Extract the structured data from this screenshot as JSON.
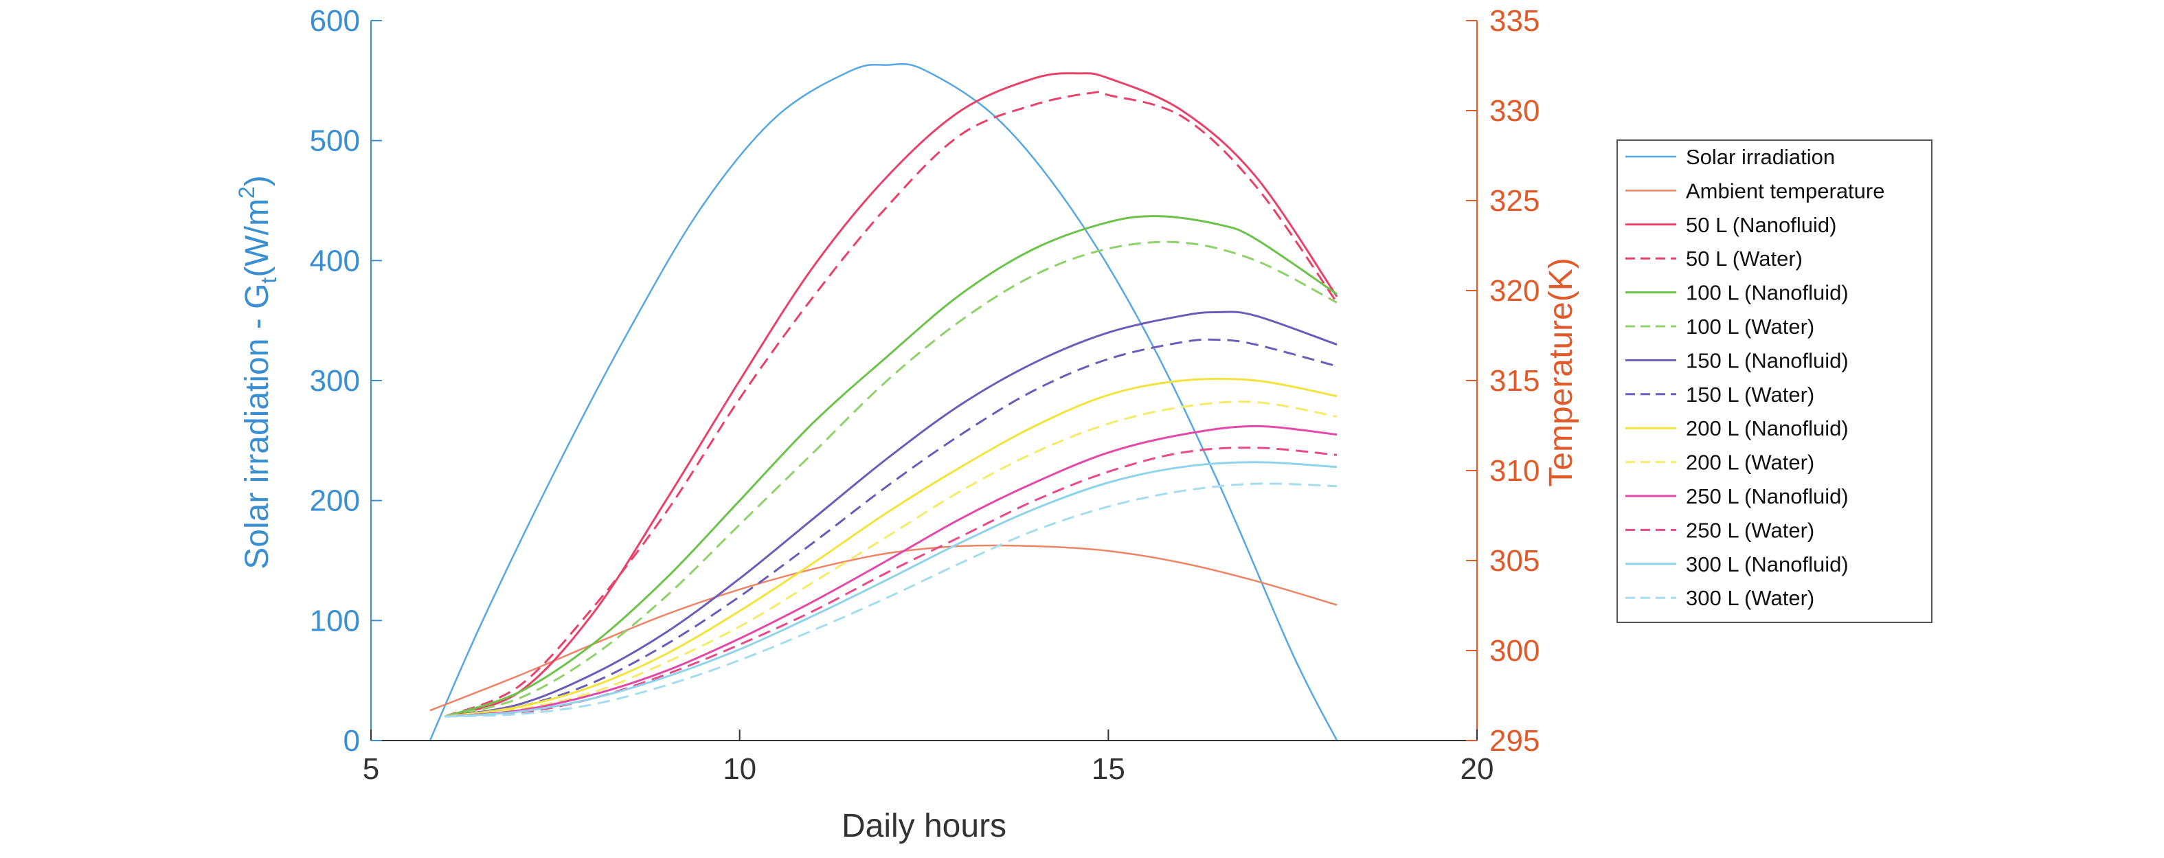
{
  "colors": {
    "left_axis": "#3a8fd0",
    "right_axis": "#e05a2a",
    "axis_black": "#333333"
  },
  "chart_data": {
    "type": "line",
    "xlabel": "Daily hours",
    "ylabel_left": "Solar irradiation - G",
    "ylabel_left_sub": "t",
    "ylabel_left_unit_open": "(W/m",
    "ylabel_left_unit_sup": "2",
    "ylabel_left_unit_close": ")",
    "ylabel_right": "Temperature(K)",
    "xlim": [
      5,
      20
    ],
    "ylim_left": [
      0,
      600
    ],
    "ylim_right": [
      295,
      335
    ],
    "xticks": [
      5,
      10,
      15,
      20
    ],
    "yticks_left": [
      0,
      100,
      200,
      300,
      400,
      500,
      600
    ],
    "yticks_right": [
      295,
      300,
      305,
      310,
      315,
      320,
      325,
      330,
      335
    ],
    "grid": false,
    "legend_position": "right-outside",
    "series": [
      {
        "name": "Solar irradiation",
        "axis": "left",
        "color": "#56a7e3",
        "dash": false,
        "width": 2.5,
        "x": [
          5.8,
          6.5,
          7.5,
          8.5,
          9.5,
          10.5,
          11.5,
          12.0,
          12.5,
          13.5,
          14.5,
          15.5,
          16.5,
          17.5,
          18.1
        ],
        "y": [
          0,
          98,
          225,
          342,
          446,
          520,
          558,
          563,
          559,
          518,
          443,
          341,
          214,
          72,
          0
        ]
      },
      {
        "name": "Ambient temperature",
        "axis": "left",
        "color": "#ee8466",
        "dash": false,
        "width": 2.5,
        "x": [
          5.8,
          7,
          8,
          9,
          10,
          11,
          12,
          13,
          14,
          15,
          16,
          17,
          18.1
        ],
        "y": [
          25,
          54,
          80,
          105,
          126,
          143,
          156,
          162,
          162,
          158,
          148,
          133,
          113
        ]
      },
      {
        "name": "50 L (Nanofluid)",
        "axis": "left",
        "color": "#e8426a",
        "dash": false,
        "width": 3,
        "x": [
          6,
          7,
          8,
          9,
          10,
          11,
          12,
          13,
          14,
          14.6,
          15,
          16,
          17,
          18.1
        ],
        "y": [
          20,
          40,
          105,
          200,
          300,
          395,
          470,
          525,
          552,
          556,
          552,
          525,
          470,
          370
        ]
      },
      {
        "name": "50 L (Water)",
        "axis": "left",
        "color": "#e8426a",
        "dash": true,
        "width": 3,
        "x": [
          6,
          7,
          8,
          9,
          10,
          11,
          12,
          13,
          14,
          14.8,
          15,
          16,
          17,
          18.1
        ],
        "y": [
          20,
          45,
          110,
          190,
          285,
          370,
          445,
          505,
          530,
          540,
          538,
          520,
          462,
          365
        ]
      },
      {
        "name": "100 L (Nanofluid)",
        "axis": "left",
        "color": "#6cc24a",
        "dash": false,
        "width": 3,
        "x": [
          6,
          7,
          8,
          9,
          10,
          11,
          12,
          13,
          14,
          15,
          15.7,
          16.5,
          17,
          18.1
        ],
        "y": [
          20,
          40,
          80,
          135,
          200,
          265,
          320,
          372,
          410,
          432,
          437,
          430,
          418,
          372
        ]
      },
      {
        "name": "100 L (Water)",
        "axis": "left",
        "color": "#8fd16a",
        "dash": true,
        "width": 3,
        "x": [
          6,
          7,
          8,
          9,
          10,
          11,
          12,
          13,
          14,
          15,
          16,
          17,
          18.1
        ],
        "y": [
          20,
          35,
          70,
          120,
          180,
          240,
          300,
          350,
          388,
          410,
          415,
          400,
          365
        ]
      },
      {
        "name": "150 L (Nanofluid)",
        "axis": "left",
        "color": "#6d5bb8",
        "dash": false,
        "width": 3,
        "x": [
          6,
          7,
          8,
          9,
          10,
          11,
          12,
          13,
          14,
          15,
          16,
          16.5,
          17,
          18.1
        ],
        "y": [
          20,
          30,
          55,
          90,
          135,
          185,
          235,
          280,
          315,
          340,
          354,
          357,
          354,
          330
        ]
      },
      {
        "name": "150 L (Water)",
        "axis": "left",
        "color": "#6d5bb8",
        "dash": true,
        "width": 3,
        "x": [
          6,
          7,
          8,
          9,
          10,
          11,
          12,
          13,
          14,
          15,
          16,
          16.5,
          17,
          18.1
        ],
        "y": [
          20,
          28,
          48,
          80,
          120,
          165,
          212,
          255,
          292,
          318,
          332,
          334,
          330,
          312
        ]
      },
      {
        "name": "200 L (Nanofluid)",
        "axis": "left",
        "color": "#f2e33d",
        "dash": false,
        "width": 3,
        "x": [
          6,
          7,
          8,
          9,
          10,
          11,
          12,
          13,
          14,
          15,
          16,
          17,
          18.1
        ],
        "y": [
          20,
          28,
          45,
          72,
          108,
          148,
          190,
          228,
          262,
          288,
          300,
          300,
          287
        ]
      },
      {
        "name": "200 L (Water)",
        "axis": "left",
        "color": "#f6ea6a",
        "dash": true,
        "width": 3,
        "x": [
          6,
          7,
          8,
          9,
          10,
          11,
          12,
          13,
          14,
          15,
          16,
          17,
          18.1
        ],
        "y": [
          20,
          26,
          40,
          65,
          95,
          132,
          170,
          208,
          240,
          264,
          278,
          282,
          270
        ]
      },
      {
        "name": "250 L (Nanofluid)",
        "axis": "left",
        "color": "#e349a8",
        "dash": false,
        "width": 3,
        "x": [
          6,
          7,
          8,
          9,
          10,
          11,
          12,
          13,
          14,
          15,
          16,
          17,
          18.1
        ],
        "y": [
          20,
          25,
          38,
          58,
          85,
          116,
          150,
          185,
          215,
          240,
          255,
          262,
          255
        ]
      },
      {
        "name": "250 L (Water)",
        "axis": "left",
        "color": "#e84a8a",
        "dash": true,
        "width": 3,
        "x": [
          6,
          7,
          8,
          9,
          10,
          11,
          12,
          13,
          14,
          15,
          16,
          17,
          18.1
        ],
        "y": [
          20,
          23,
          35,
          55,
          80,
          108,
          140,
          170,
          200,
          224,
          240,
          244,
          238
        ]
      },
      {
        "name": "300 L (Nanofluid)",
        "axis": "left",
        "color": "#8fd3ea",
        "dash": false,
        "width": 3,
        "x": [
          6,
          7,
          8,
          9,
          10,
          11,
          12,
          13,
          14,
          15,
          16,
          17,
          18.1
        ],
        "y": [
          20,
          24,
          35,
          53,
          76,
          104,
          134,
          165,
          193,
          215,
          228,
          232,
          228
        ]
      },
      {
        "name": "300 L (Water)",
        "axis": "left",
        "color": "#a6dcef",
        "dash": true,
        "width": 3,
        "x": [
          6,
          7,
          8,
          9,
          10,
          11,
          12,
          13,
          14,
          15,
          16,
          17,
          18.1
        ],
        "y": [
          20,
          22,
          30,
          46,
          67,
          92,
          119,
          148,
          175,
          195,
          208,
          214,
          212
        ]
      }
    ]
  }
}
